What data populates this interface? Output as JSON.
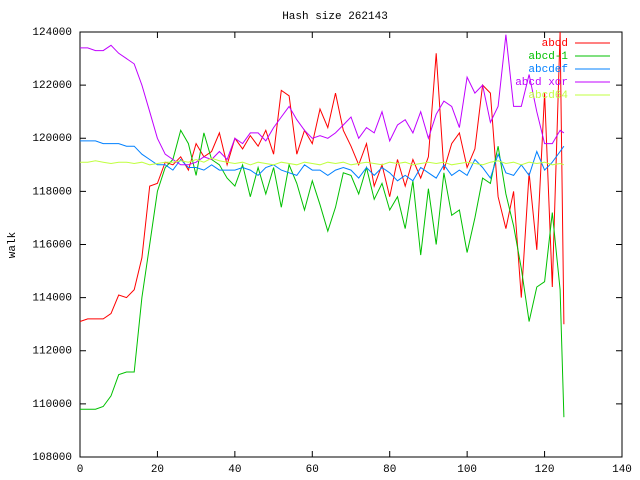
{
  "chart_data": {
    "type": "line",
    "title": "Hash size 262143",
    "y_label": "walk",
    "x": [
      0,
      2,
      4,
      6,
      8,
      10,
      12,
      14,
      16,
      18,
      20,
      22,
      24,
      26,
      28,
      30,
      32,
      34,
      36,
      38,
      40,
      42,
      44,
      46,
      48,
      50,
      52,
      54,
      56,
      58,
      60,
      62,
      64,
      66,
      68,
      70,
      72,
      74,
      76,
      78,
      80,
      82,
      84,
      86,
      88,
      90,
      92,
      94,
      96,
      98,
      100,
      102,
      104,
      106,
      108,
      110,
      112,
      114,
      116,
      118,
      120,
      122,
      124,
      125
    ],
    "xlim": [
      0,
      140
    ],
    "xticks": [
      0,
      20,
      40,
      60,
      80,
      100,
      120,
      140
    ],
    "ylim": [
      108000,
      124000
    ],
    "yticks": [
      108000,
      110000,
      112000,
      114000,
      116000,
      118000,
      120000,
      122000,
      124000
    ],
    "legend": "top-right",
    "series": [
      {
        "name": "abcd",
        "color": "#ff0000",
        "values": [
          113100,
          113200,
          113200,
          113200,
          113400,
          114100,
          114000,
          114300,
          115500,
          118200,
          118300,
          119100,
          119000,
          119300,
          118800,
          119800,
          119300,
          119500,
          120200,
          119000,
          120000,
          119600,
          120100,
          119700,
          120300,
          119400,
          121800,
          121600,
          119400,
          120300,
          119800,
          121100,
          120400,
          121700,
          120300,
          119700,
          119000,
          119800,
          118200,
          119000,
          117800,
          119200,
          118200,
          119200,
          118500,
          119300,
          123200,
          118800,
          119800,
          120200,
          118900,
          119600,
          122000,
          121700,
          117800,
          116600,
          118000,
          114000,
          118700,
          115800,
          121700,
          114400,
          124000,
          113000
        ]
      },
      {
        "name": "abcd-1",
        "color": "#00c000",
        "values": [
          109800,
          109800,
          109800,
          109900,
          110300,
          111100,
          111200,
          111200,
          114000,
          116000,
          118000,
          118900,
          119200,
          120300,
          119800,
          118600,
          120200,
          119200,
          119000,
          118500,
          118200,
          119000,
          117800,
          118900,
          117900,
          118900,
          117400,
          119000,
          118300,
          117300,
          118400,
          117500,
          116500,
          117400,
          118700,
          118600,
          117900,
          118900,
          117700,
          118300,
          117300,
          117800,
          116600,
          118400,
          115600,
          118100,
          116000,
          118700,
          117100,
          117300,
          115700,
          117000,
          118500,
          118300,
          119700,
          117900,
          116700,
          115100,
          113100,
          114400,
          114600,
          117200,
          114300,
          109500
        ]
      },
      {
        "name": "abcdef",
        "color": "#0080ff",
        "values": [
          119900,
          119900,
          119900,
          119800,
          119800,
          119800,
          119700,
          119700,
          119400,
          119200,
          119000,
          119000,
          118800,
          119200,
          118900,
          118900,
          118800,
          119000,
          118800,
          118800,
          118800,
          118900,
          118800,
          118600,
          118900,
          119000,
          118800,
          118700,
          118600,
          119000,
          118800,
          118800,
          118600,
          118800,
          118900,
          118800,
          118500,
          118900,
          118600,
          118900,
          118700,
          118400,
          118600,
          118400,
          118900,
          118700,
          118500,
          119000,
          118600,
          118800,
          118600,
          119200,
          118900,
          118500,
          119400,
          118700,
          118600,
          119000,
          118600,
          119500,
          118800,
          119100,
          119500,
          119700
        ]
      },
      {
        "name": "abcd xor",
        "color": "#c000ff",
        "values": [
          123400,
          123400,
          123300,
          123300,
          123500,
          123200,
          123000,
          122800,
          122000,
          121000,
          120000,
          119400,
          119200,
          119000,
          119000,
          119100,
          119300,
          119200,
          119500,
          119200,
          120000,
          119800,
          120200,
          120200,
          119900,
          120400,
          120800,
          121200,
          120700,
          120300,
          120000,
          120100,
          120000,
          120200,
          120500,
          120800,
          120000,
          120400,
          120200,
          121000,
          119900,
          120500,
          120700,
          120200,
          121000,
          120000,
          120900,
          121400,
          121200,
          120400,
          122300,
          121700,
          122000,
          120600,
          121200,
          123900,
          121200,
          121200,
          122400,
          121000,
          119800,
          119800,
          120300,
          120200
        ]
      },
      {
        "name": "abcd64",
        "color": "#c0ff40",
        "values": [
          119100,
          119100,
          119150,
          119100,
          119050,
          119100,
          119100,
          119050,
          119100,
          119000,
          119050,
          119100,
          119100,
          119150,
          119100,
          119200,
          119100,
          119250,
          119150,
          119100,
          119050,
          119100,
          119000,
          119100,
          119050,
          119000,
          119100,
          119050,
          119000,
          119100,
          119050,
          119000,
          119100,
          119050,
          119100,
          119000,
          119050,
          119100,
          119050,
          119000,
          119100,
          119050,
          119100,
          119000,
          119050,
          119100,
          119050,
          119100,
          119000,
          119050,
          119100,
          119050,
          119000,
          119100,
          119150,
          119050,
          119100,
          119000,
          119100,
          119050,
          119100,
          119000,
          119050,
          119000
        ]
      }
    ]
  }
}
